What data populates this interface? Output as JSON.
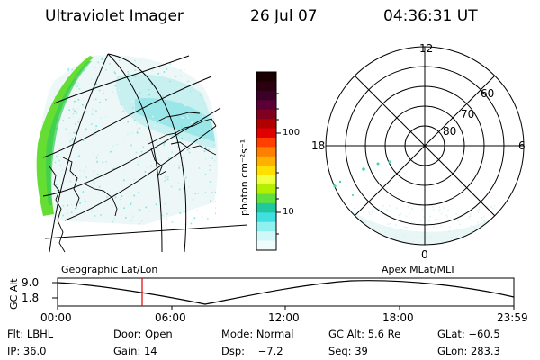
{
  "header": {
    "instrument": "Ultraviolet Imager",
    "date": "26 Jul 07",
    "time": "04:36:31 UT"
  },
  "left_panel": {
    "caption": "Geographic Lat/Lon"
  },
  "right_panel": {
    "caption": "Apex MLat/MLT",
    "mlt_labels": [
      "12",
      "18",
      "6",
      "0"
    ],
    "mlat_labels": [
      "60",
      "70",
      "80"
    ]
  },
  "colorbar": {
    "unit_label": "photon cm⁻²s⁻¹",
    "tick_labels": [
      "100",
      "10"
    ],
    "colors": [
      "#1a0000",
      "#2a0010",
      "#3a0028",
      "#5a0034",
      "#800020",
      "#b00000",
      "#e00000",
      "#ff4000",
      "#ff8000",
      "#ffb000",
      "#ffe000",
      "#f0ff40",
      "#b0f000",
      "#60e040",
      "#20c8a0",
      "#40e0e0",
      "#90f0f0",
      "#d0f8f8",
      "#f0fcfc"
    ]
  },
  "altitude_plot": {
    "ylabel": "GC Alt",
    "y_ticks": [
      "9.0",
      "1.8"
    ],
    "x_ticks": [
      "00:00",
      "06:00",
      "12:00",
      "18:00",
      "23:59"
    ],
    "marker_color": "#e00000"
  },
  "info": {
    "rows": [
      [
        "Flt: LBHL",
        "Door: Open",
        "Mode: Normal",
        "GC Alt: 5.6 Re",
        "GLat: −60.5"
      ],
      [
        "IP: 36.0",
        "Gain: 14",
        "Dsp:    −7.2",
        "Seq: 39",
        "GLon: 283.3"
      ]
    ]
  }
}
